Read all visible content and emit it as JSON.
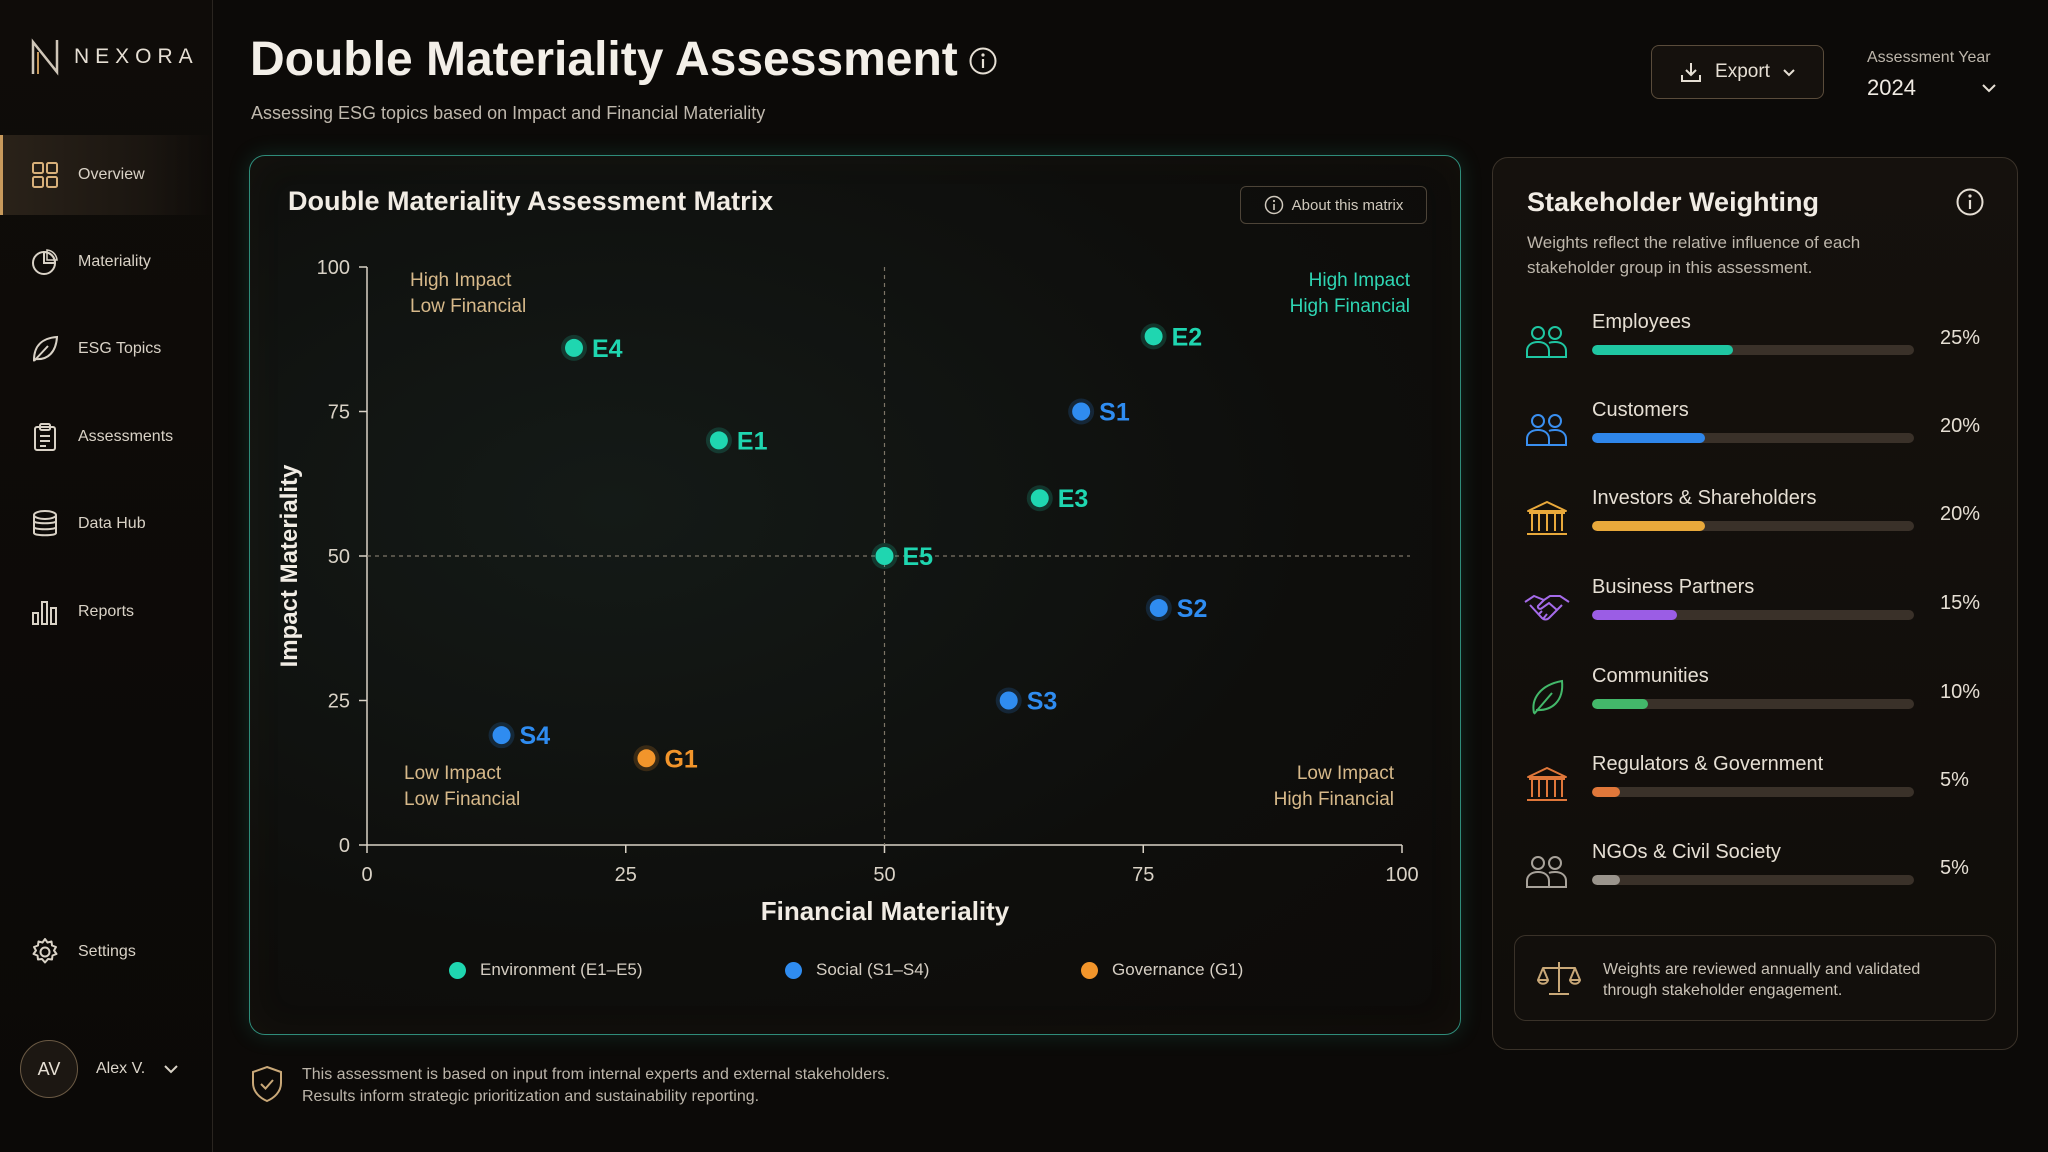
{
  "app": {
    "brand": "NEXORA"
  },
  "sidebar": {
    "items": [
      {
        "label": "Overview",
        "icon": "grid-icon",
        "active": true
      },
      {
        "label": "Materiality",
        "icon": "pie-chart-icon"
      },
      {
        "label": "ESG Topics",
        "icon": "leaf-icon"
      },
      {
        "label": "Assessments",
        "icon": "clipboard-icon"
      },
      {
        "label": "Data Hub",
        "icon": "database-icon"
      },
      {
        "label": "Reports",
        "icon": "bar-chart-icon"
      }
    ],
    "settings_label": "Settings",
    "user": {
      "initials": "AV",
      "name": "Alex V."
    }
  },
  "header": {
    "title": "Double Materiality Assessment",
    "subtitle": "Assessing ESG topics based on Impact and Financial Materiality",
    "export_label": "Export",
    "year_label": "Assessment Year",
    "year_value": "2024"
  },
  "matrix": {
    "title": "Double Materiality Assessment Matrix",
    "about_label": "About this matrix",
    "quadrants": {
      "top_left": [
        "High Impact",
        "Low Financial"
      ],
      "top_right": [
        "High Impact",
        "High Financial"
      ],
      "bottom_left": [
        "Low Impact",
        "Low Financial"
      ],
      "bottom_right": [
        "Low Impact",
        "High Financial"
      ]
    }
  },
  "chart_data": {
    "type": "scatter",
    "xlabel": "Financial Materiality",
    "ylabel": "Impact Materiality",
    "xlim": [
      0,
      100
    ],
    "ylim": [
      0,
      100
    ],
    "xticks": [
      0,
      25,
      50,
      75,
      100
    ],
    "yticks": [
      0,
      25,
      50,
      75,
      100
    ],
    "threshold": {
      "x": 50,
      "y": 50
    },
    "series": [
      {
        "name": "Environment (E1–E5)",
        "color": "#1fd6b0",
        "points": [
          {
            "label": "E1",
            "x": 34,
            "y": 70
          },
          {
            "label": "E2",
            "x": 76,
            "y": 88
          },
          {
            "label": "E3",
            "x": 65,
            "y": 60
          },
          {
            "label": "E4",
            "x": 20,
            "y": 86
          },
          {
            "label": "E5",
            "x": 50,
            "y": 50
          }
        ]
      },
      {
        "name": "Social (S1–S4)",
        "color": "#2f8cf0",
        "points": [
          {
            "label": "S1",
            "x": 69,
            "y": 75
          },
          {
            "label": "S2",
            "x": 76.5,
            "y": 41
          },
          {
            "label": "S3",
            "x": 62,
            "y": 25
          },
          {
            "label": "S4",
            "x": 13,
            "y": 19
          }
        ]
      },
      {
        "name": "Governance (G1)",
        "color": "#f2952b",
        "points": [
          {
            "label": "G1",
            "x": 27,
            "y": 15
          }
        ]
      }
    ]
  },
  "footnote": {
    "line1": "This assessment is based on input from internal experts and external stakeholders.",
    "line2": "Results inform strategic prioritization and sustainability reporting."
  },
  "stakeholders": {
    "title": "Stakeholder Weighting",
    "description": "Weights reflect the relative influence of each stakeholder group in this assessment.",
    "groups": [
      {
        "name": "Employees",
        "weight": 25,
        "pct_label": "25%",
        "color": "#1fc6a2",
        "icon": "users-icon",
        "icon_color": "#1fc6a2"
      },
      {
        "name": "Customers",
        "weight": 20,
        "pct_label": "20%",
        "color": "#2f86ea",
        "icon": "users-icon",
        "icon_color": "#3a8ff0"
      },
      {
        "name": "Investors & Shareholders",
        "weight": 20,
        "pct_label": "20%",
        "color": "#e9a93b",
        "icon": "bank-icon",
        "icon_color": "#e9a93b"
      },
      {
        "name": "Business Partners",
        "weight": 15,
        "pct_label": "15%",
        "color": "#9b5de5",
        "icon": "handshake-icon",
        "icon_color": "#a56bea"
      },
      {
        "name": "Communities",
        "weight": 10,
        "pct_label": "10%",
        "color": "#43b86a",
        "icon": "leaf-icon",
        "icon_color": "#43b86a"
      },
      {
        "name": "Regulators & Government",
        "weight": 5,
        "pct_label": "5%",
        "color": "#e0773a",
        "icon": "bank-icon",
        "icon_color": "#e0773a"
      },
      {
        "name": "NGOs & Civil Society",
        "weight": 5,
        "pct_label": "5%",
        "color": "#9a948c",
        "icon": "users-icon",
        "icon_color": "#a8a29a"
      }
    ],
    "note": "Weights are reviewed annually and validated through stakeholder engagement."
  }
}
